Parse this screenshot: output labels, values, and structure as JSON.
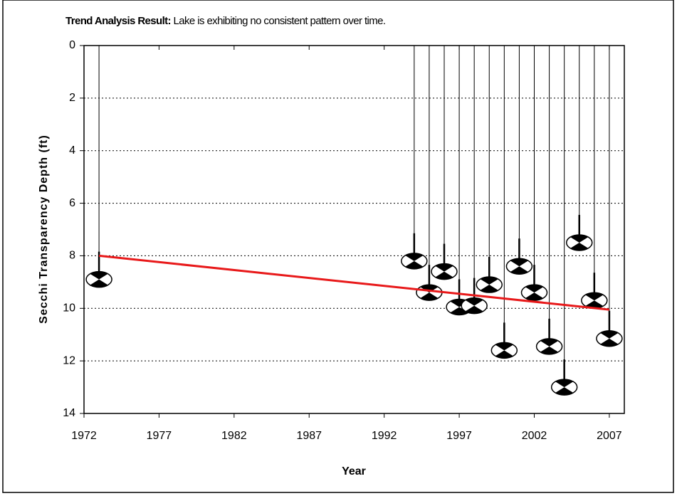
{
  "chart_data": {
    "type": "secchi",
    "annotation_label": "Trend Analysis Result:",
    "annotation_text": "Lake is exhibiting no consistent pattern over time.",
    "y_label": "Secchi Transparency Depth (ft)",
    "x_label": "Year",
    "x": [
      1973,
      1994,
      1995,
      1996,
      1997,
      1998,
      1999,
      2000,
      2001,
      2002,
      2003,
      2004,
      2005,
      2006,
      2007
    ],
    "values": [
      8.9,
      8.2,
      9.4,
      8.6,
      9.95,
      9.9,
      9.1,
      11.6,
      8.4,
      9.4,
      11.45,
      13.0,
      7.5,
      9.7,
      11.15
    ],
    "trend": {
      "x": [
        1973,
        2007
      ],
      "values": [
        8.0,
        10.05
      ],
      "color": "#e8191a"
    },
    "xlim": [
      1972,
      2008
    ],
    "xticks": [
      1972,
      1977,
      1982,
      1987,
      1992,
      1997,
      2002,
      2007
    ],
    "ylim": [
      0,
      14
    ],
    "yticks": [
      0,
      2,
      4,
      6,
      8,
      10,
      12,
      14
    ],
    "y_inverted": true,
    "grid": true
  }
}
